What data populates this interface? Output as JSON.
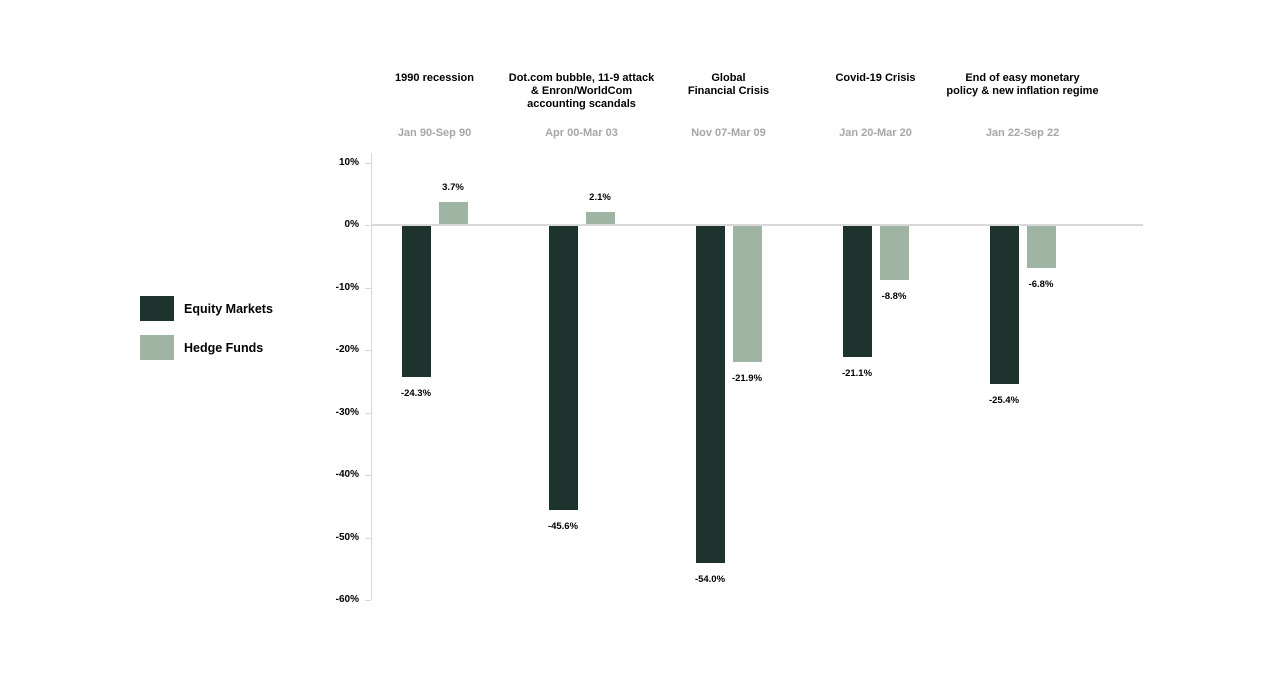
{
  "colors": {
    "equity_markets": "#1e332e",
    "hedge_funds": "#9fb4a3",
    "axis_line": "#d9d9d9",
    "zero_line": "#d9d9d9",
    "period_text": "#a6a6a6",
    "value_text": "#000000",
    "title_text": "#000000"
  },
  "legend": {
    "items": [
      {
        "label": "Equity Markets"
      },
      {
        "label": "Hedge Funds"
      }
    ]
  },
  "chart_data": {
    "type": "bar",
    "categories": [
      {
        "title": "1990 recession",
        "title_lines": [
          "1990 recession"
        ],
        "period": "Jan 90-Sep 90"
      },
      {
        "title": "Dot.com bubble, 11-9 attack & Enron/WorldCom accounting scandals",
        "title_lines": [
          "Dot.com bubble, 11-9 attack",
          "& Enron/WorldCom",
          "accounting scandals"
        ],
        "period": "Apr 00-Mar 03"
      },
      {
        "title": "Global Financial Crisis",
        "title_lines": [
          "Global",
          "Financial Crisis"
        ],
        "period": "Nov 07-Mar 09"
      },
      {
        "title": "Covid-19 Crisis",
        "title_lines": [
          "Covid-19 Crisis"
        ],
        "period": "Jan 20-Mar 20"
      },
      {
        "title": "End of easy monetary policy & new inflation regime",
        "title_lines": [
          "End of easy monetary",
          "policy & new inflation regime"
        ],
        "period": "Jan 22-Sep 22"
      }
    ],
    "series": [
      {
        "name": "Equity Markets",
        "color": "#1e332e",
        "values": [
          -24.3,
          -45.6,
          -54.0,
          -21.1,
          -25.4
        ],
        "value_labels": [
          "-24.3%",
          "-45.6%",
          "-54.0%",
          "-21.1%",
          "-25.4%"
        ]
      },
      {
        "name": "Hedge Funds",
        "color": "#9fb4a3",
        "values": [
          3.7,
          2.1,
          -21.9,
          -8.8,
          -6.8
        ],
        "value_labels": [
          "3.7%",
          "2.1%",
          "-21.9%",
          "-8.8%",
          "-6.8%"
        ]
      }
    ],
    "y_axis": {
      "tick_labels": [
        "10%",
        "0%",
        "-10%",
        "-20%",
        "-30%",
        "-40%",
        "-50%",
        "-60%"
      ],
      "tick_values": [
        10,
        0,
        -10,
        -20,
        -30,
        -40,
        -50,
        -60
      ],
      "ylim": [
        -60,
        10
      ]
    },
    "grid": false,
    "legend_position": "left"
  }
}
